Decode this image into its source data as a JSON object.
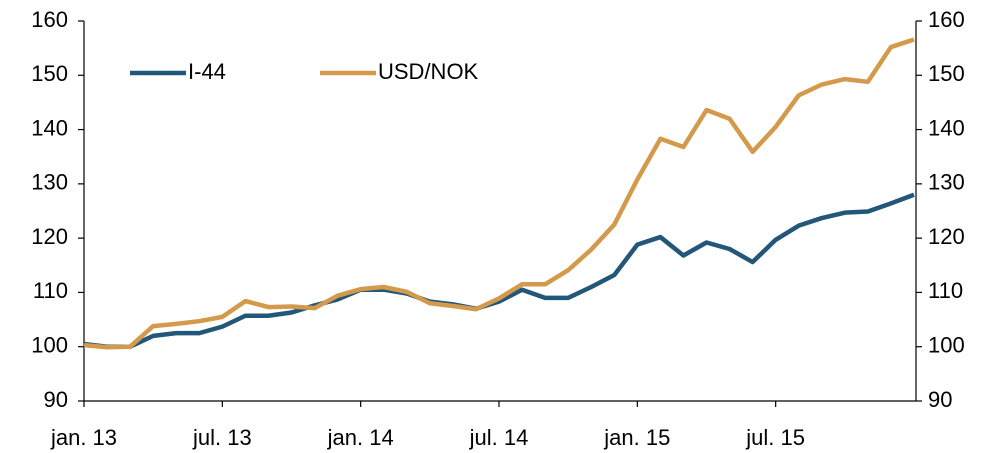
{
  "chart_data": {
    "type": "line",
    "categories": [
      "jan. 13",
      null,
      null,
      null,
      null,
      null,
      "jul. 13",
      null,
      null,
      null,
      null,
      null,
      "jan. 14",
      null,
      null,
      null,
      null,
      null,
      "jul. 14",
      null,
      null,
      null,
      null,
      null,
      "jan. 15",
      null,
      null,
      null,
      null,
      null,
      "jul. 15",
      null,
      null,
      null,
      null,
      null,
      null
    ],
    "series": [
      {
        "name": "I-44",
        "color": "#23577a",
        "values": [
          100.5,
          100,
          100,
          102,
          102.5,
          102.5,
          103.7,
          105.7,
          105.7,
          106.3,
          107.6,
          108.7,
          110.5,
          110.5,
          109.8,
          108.3,
          107.8,
          107,
          108.3,
          110.5,
          109,
          109,
          111,
          113.2,
          118.8,
          120.2,
          116.8,
          119.2,
          118,
          115.6,
          119.7,
          122.3,
          123.7,
          124.7,
          124.9,
          126.4,
          128
        ]
      },
      {
        "name": "USD/NOK",
        "color": "#d39a4c",
        "values": [
          100.3,
          99.9,
          100,
          103.8,
          104.2,
          104.7,
          105.5,
          108.4,
          107.3,
          107.4,
          107.1,
          109.4,
          110.6,
          111,
          110.1,
          108,
          107.5,
          106.9,
          108.9,
          111.5,
          111.5,
          114.1,
          117.9,
          122.5,
          130.8,
          138.3,
          136.8,
          143.6,
          142,
          135.9,
          140.5,
          146.3,
          148.3,
          149.3,
          148.8,
          155.2,
          156.6
        ]
      }
    ],
    "ylim": [
      90,
      160
    ],
    "yticks": [
      90,
      100,
      110,
      120,
      130,
      140,
      150,
      160
    ],
    "y2lim": [
      90,
      160
    ],
    "y2ticks": [
      90,
      100,
      110,
      120,
      130,
      140,
      150,
      160
    ],
    "legend": "top-left",
    "grid": false
  }
}
